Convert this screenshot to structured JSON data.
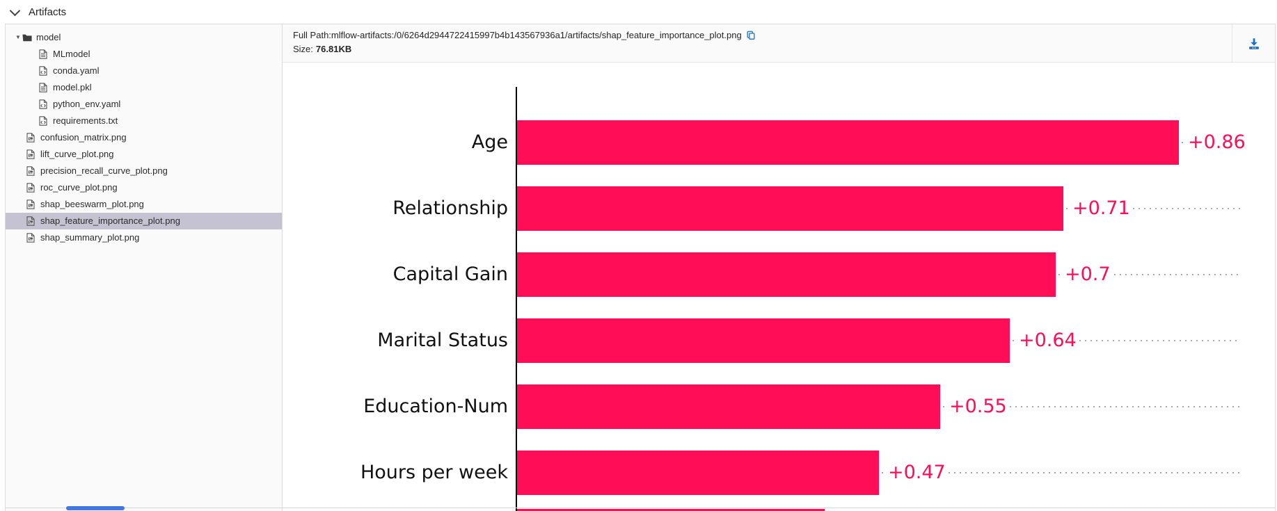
{
  "header": {
    "title": "Artifacts"
  },
  "tree": {
    "items": [
      {
        "label": "model",
        "icon": "folder",
        "level": 0,
        "expanded": true,
        "selected": false
      },
      {
        "label": "MLmodel",
        "icon": "file",
        "level": 1,
        "selected": false
      },
      {
        "label": "conda.yaml",
        "icon": "code",
        "level": 1,
        "selected": false
      },
      {
        "label": "model.pkl",
        "icon": "file",
        "level": 1,
        "selected": false
      },
      {
        "label": "python_env.yaml",
        "icon": "code",
        "level": 1,
        "selected": false
      },
      {
        "label": "requirements.txt",
        "icon": "code",
        "level": 1,
        "selected": false
      },
      {
        "label": "confusion_matrix.png",
        "icon": "image",
        "level": 0,
        "selected": false
      },
      {
        "label": "lift_curve_plot.png",
        "icon": "image",
        "level": 0,
        "selected": false
      },
      {
        "label": "precision_recall_curve_plot.png",
        "icon": "image",
        "level": 0,
        "selected": false
      },
      {
        "label": "roc_curve_plot.png",
        "icon": "image",
        "level": 0,
        "selected": false
      },
      {
        "label": "shap_beeswarm_plot.png",
        "icon": "image",
        "level": 0,
        "selected": false
      },
      {
        "label": "shap_feature_importance_plot.png",
        "icon": "image",
        "level": 0,
        "selected": true
      },
      {
        "label": "shap_summary_plot.png",
        "icon": "image",
        "level": 0,
        "selected": false
      }
    ]
  },
  "preview_header": {
    "full_path_label": "Full Path:",
    "full_path_value": "mlflow-artifacts:/0/6264d2944722415997b4b143567936a1/artifacts/shap_feature_importance_plot.png",
    "size_label": "Size:",
    "size_value": "76.81KB"
  },
  "chart_data": {
    "type": "bar",
    "orientation": "horizontal",
    "title": "",
    "categories": [
      "Age",
      "Relationship",
      "Capital Gain",
      "Marital Status",
      "Education-Num",
      "Hours per week"
    ],
    "values": [
      0.86,
      0.71,
      0.7,
      0.64,
      0.55,
      0.47
    ],
    "value_labels": [
      "+0.86",
      "+0.71",
      "+0.7",
      "+0.64",
      "+0.55",
      "+0.47"
    ],
    "bar_color": "#ff0d57",
    "axis_color": "#000000",
    "leader_dots_color": "#aaaaaa",
    "xlim": [
      0,
      0.95
    ],
    "grid": false,
    "legend": false,
    "clipped_next_bar_value": 0.4
  },
  "colors": {
    "selected_row_bg": "#c5c2d1",
    "panel_bg": "#fafafa",
    "accent_blue": "#2e77d0",
    "bar_crimson": "#ff0d57"
  }
}
